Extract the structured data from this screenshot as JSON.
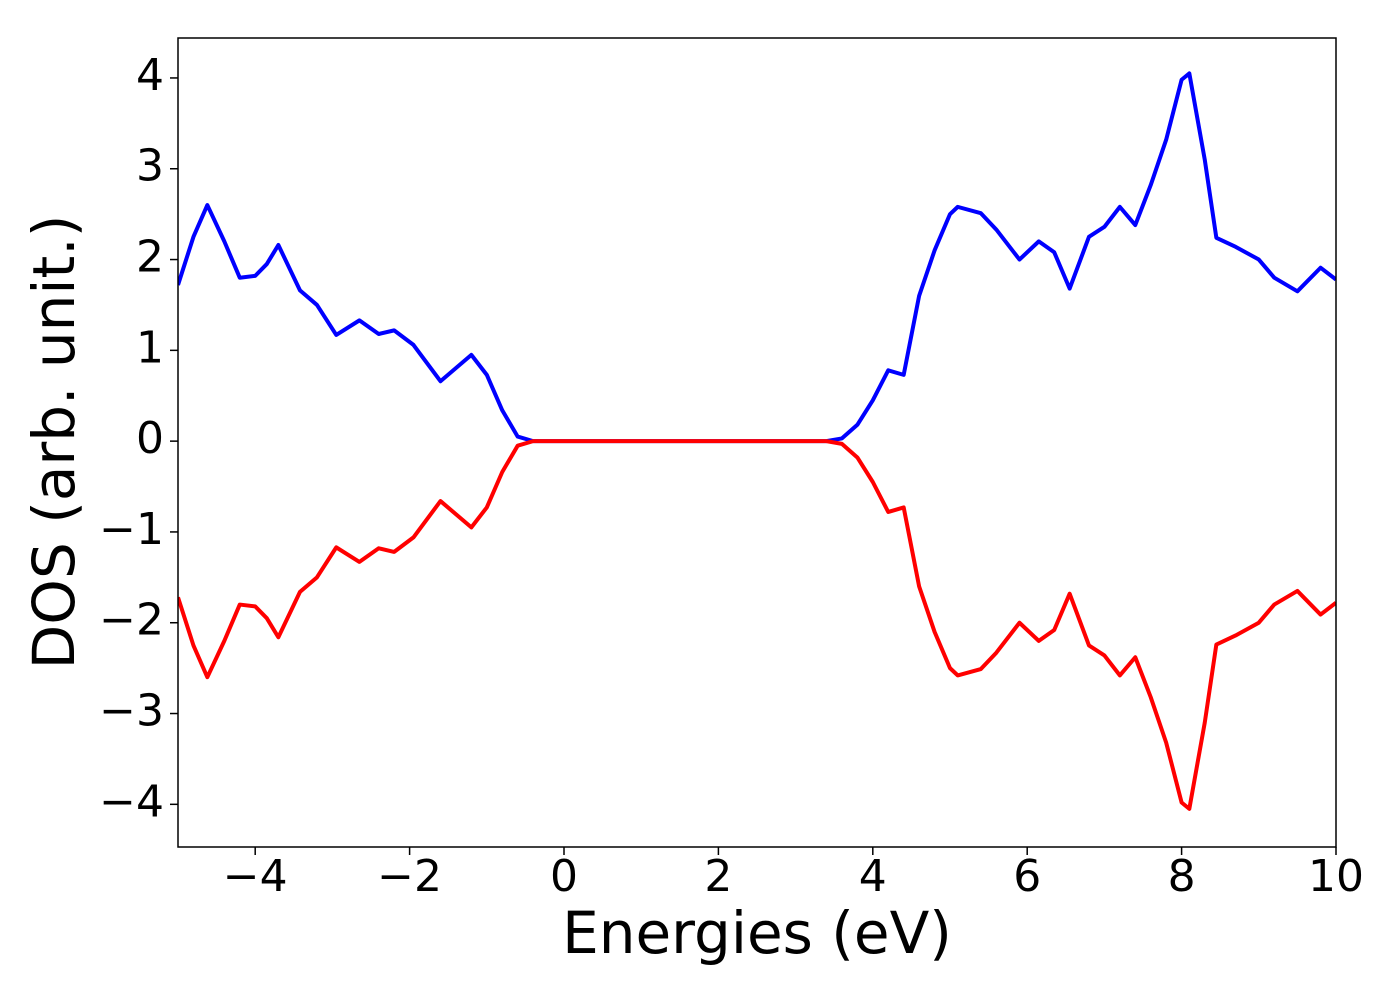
{
  "chart_data": {
    "type": "line",
    "x_label": "Energies (eV)",
    "y_label": "DOS (arb. unit.)",
    "x": [
      -5,
      -4.8,
      -4.62,
      -4.4,
      -4.2,
      -4.0,
      -3.85,
      -3.7,
      -3.42,
      -3.2,
      -2.95,
      -2.65,
      -2.4,
      -2.2,
      -1.95,
      -1.6,
      -1.2,
      -1.0,
      -0.8,
      -0.6,
      -0.4,
      3.4,
      3.6,
      3.8,
      4.0,
      4.2,
      4.4,
      4.6,
      4.8,
      5.0,
      5.1,
      5.4,
      5.6,
      5.9,
      6.15,
      6.35,
      6.55,
      6.8,
      7.0,
      7.2,
      7.4,
      7.6,
      7.8,
      8.0,
      8.1,
      8.3,
      8.45,
      8.7,
      9.0,
      9.2,
      9.5,
      9.8,
      10
    ],
    "series": [
      {
        "color": "#0000ff",
        "values": [
          1.72,
          2.25,
          2.6,
          2.2,
          1.8,
          1.82,
          1.95,
          2.16,
          1.66,
          1.5,
          1.17,
          1.33,
          1.18,
          1.22,
          1.06,
          0.66,
          0.95,
          0.73,
          0.34,
          0.05,
          0.0,
          0.0,
          0.03,
          0.18,
          0.45,
          0.78,
          0.73,
          1.6,
          2.1,
          2.5,
          2.58,
          2.51,
          2.33,
          2.0,
          2.2,
          2.08,
          1.68,
          2.25,
          2.36,
          2.58,
          2.38,
          2.82,
          3.32,
          3.98,
          4.05,
          3.1,
          2.24,
          2.14,
          2.0,
          1.8,
          1.65,
          1.91,
          1.78
        ]
      },
      {
        "color": "#ff0000",
        "values": [
          -1.72,
          -2.25,
          -2.6,
          -2.2,
          -1.8,
          -1.82,
          -1.95,
          -2.16,
          -1.66,
          -1.5,
          -1.17,
          -1.33,
          -1.18,
          -1.22,
          -1.06,
          -0.66,
          -0.95,
          -0.73,
          -0.34,
          -0.05,
          0.0,
          0.0,
          -0.03,
          -0.18,
          -0.45,
          -0.78,
          -0.73,
          -1.6,
          -2.1,
          -2.5,
          -2.58,
          -2.51,
          -2.33,
          -2.0,
          -2.2,
          -2.08,
          -1.68,
          -2.25,
          -2.36,
          -2.58,
          -2.38,
          -2.82,
          -3.32,
          -3.98,
          -4.05,
          -3.1,
          -2.24,
          -2.14,
          -2.0,
          -1.8,
          -1.65,
          -1.91,
          -1.78
        ]
      }
    ],
    "xlim": [
      -5,
      10
    ],
    "xticks": [
      {
        "value": -4,
        "label": "−4"
      },
      {
        "value": -2,
        "label": "−2"
      },
      0,
      2,
      4,
      6,
      8,
      10
    ],
    "ylim": [
      -4.47,
      4.44
    ],
    "yticks": [
      {
        "value": -4,
        "label": "−4"
      },
      {
        "value": -3,
        "label": "−3"
      },
      {
        "value": -2,
        "label": "−2"
      },
      {
        "value": -1,
        "label": "−1"
      },
      0,
      1,
      2,
      3,
      4
    ],
    "grid": false
  }
}
